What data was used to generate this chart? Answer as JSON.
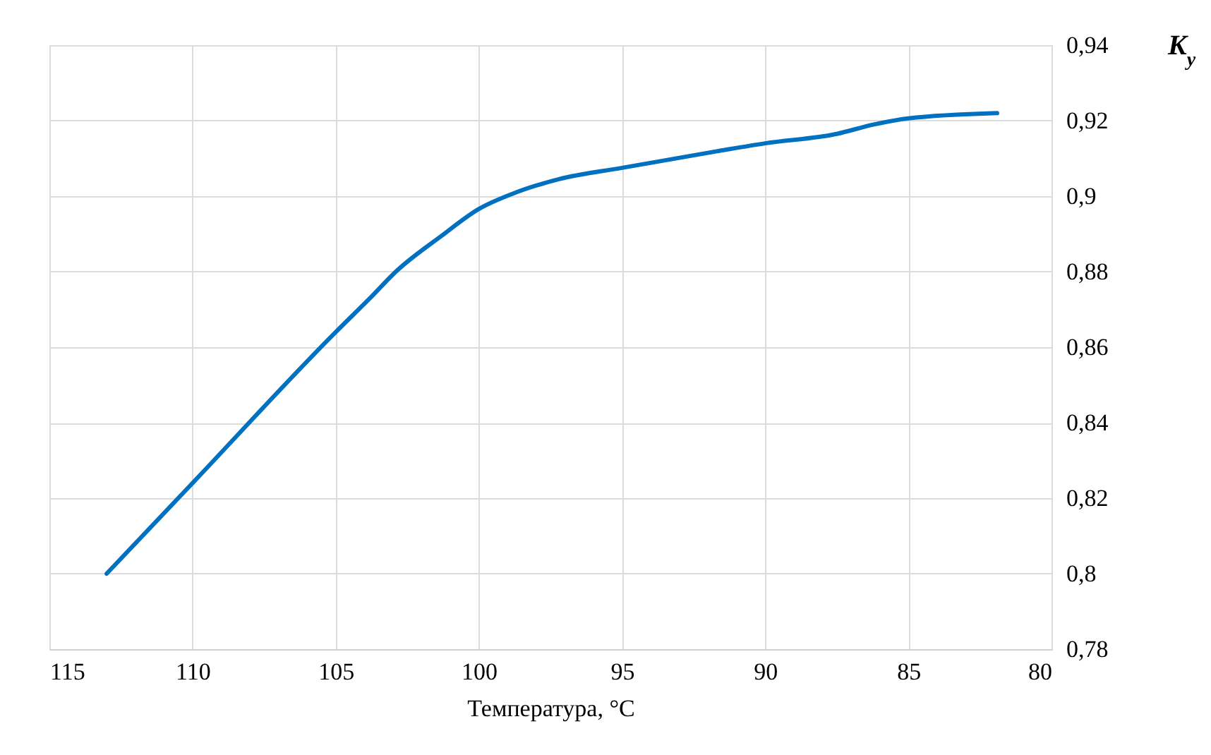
{
  "chart_data": {
    "type": "line",
    "xlabel": "Температура, °C",
    "ylabel": "K$_{y}$",
    "x": [
      113,
      110,
      105,
      103.8,
      102.9,
      101.3,
      100,
      98.8,
      97.2,
      95,
      91.6,
      90,
      87.5,
      86.2,
      85,
      81.9
    ],
    "series": [
      {
        "color": "#0070c0",
        "values": [
          0.8,
          0.824,
          0.864,
          0.873,
          0.88,
          0.8895,
          0.8966,
          0.9007,
          0.9045,
          0.9075,
          0.912,
          0.914,
          0.9165,
          0.919,
          0.9206,
          0.922
        ]
      }
    ],
    "xlim": [
      115,
      80
    ],
    "xticks": [
      115,
      110,
      105,
      100,
      95,
      90,
      85,
      80
    ],
    "ylim": [
      0.78,
      0.94
    ],
    "yticks": [
      {
        "value": 0.78,
        "label": "0,78"
      },
      {
        "value": 0.8,
        "label": "0,8"
      },
      {
        "value": 0.82,
        "label": "0,82"
      },
      {
        "value": 0.84,
        "label": "0,84"
      },
      {
        "value": 0.86,
        "label": "0,86"
      },
      {
        "value": 0.88,
        "label": "0,88"
      },
      {
        "value": 0.9,
        "label": "0,9"
      },
      {
        "value": 0.92,
        "label": "0,92"
      },
      {
        "value": 0.94,
        "label": "0,94"
      }
    ],
    "grid": true,
    "marker": "none",
    "line_style": "solid"
  }
}
